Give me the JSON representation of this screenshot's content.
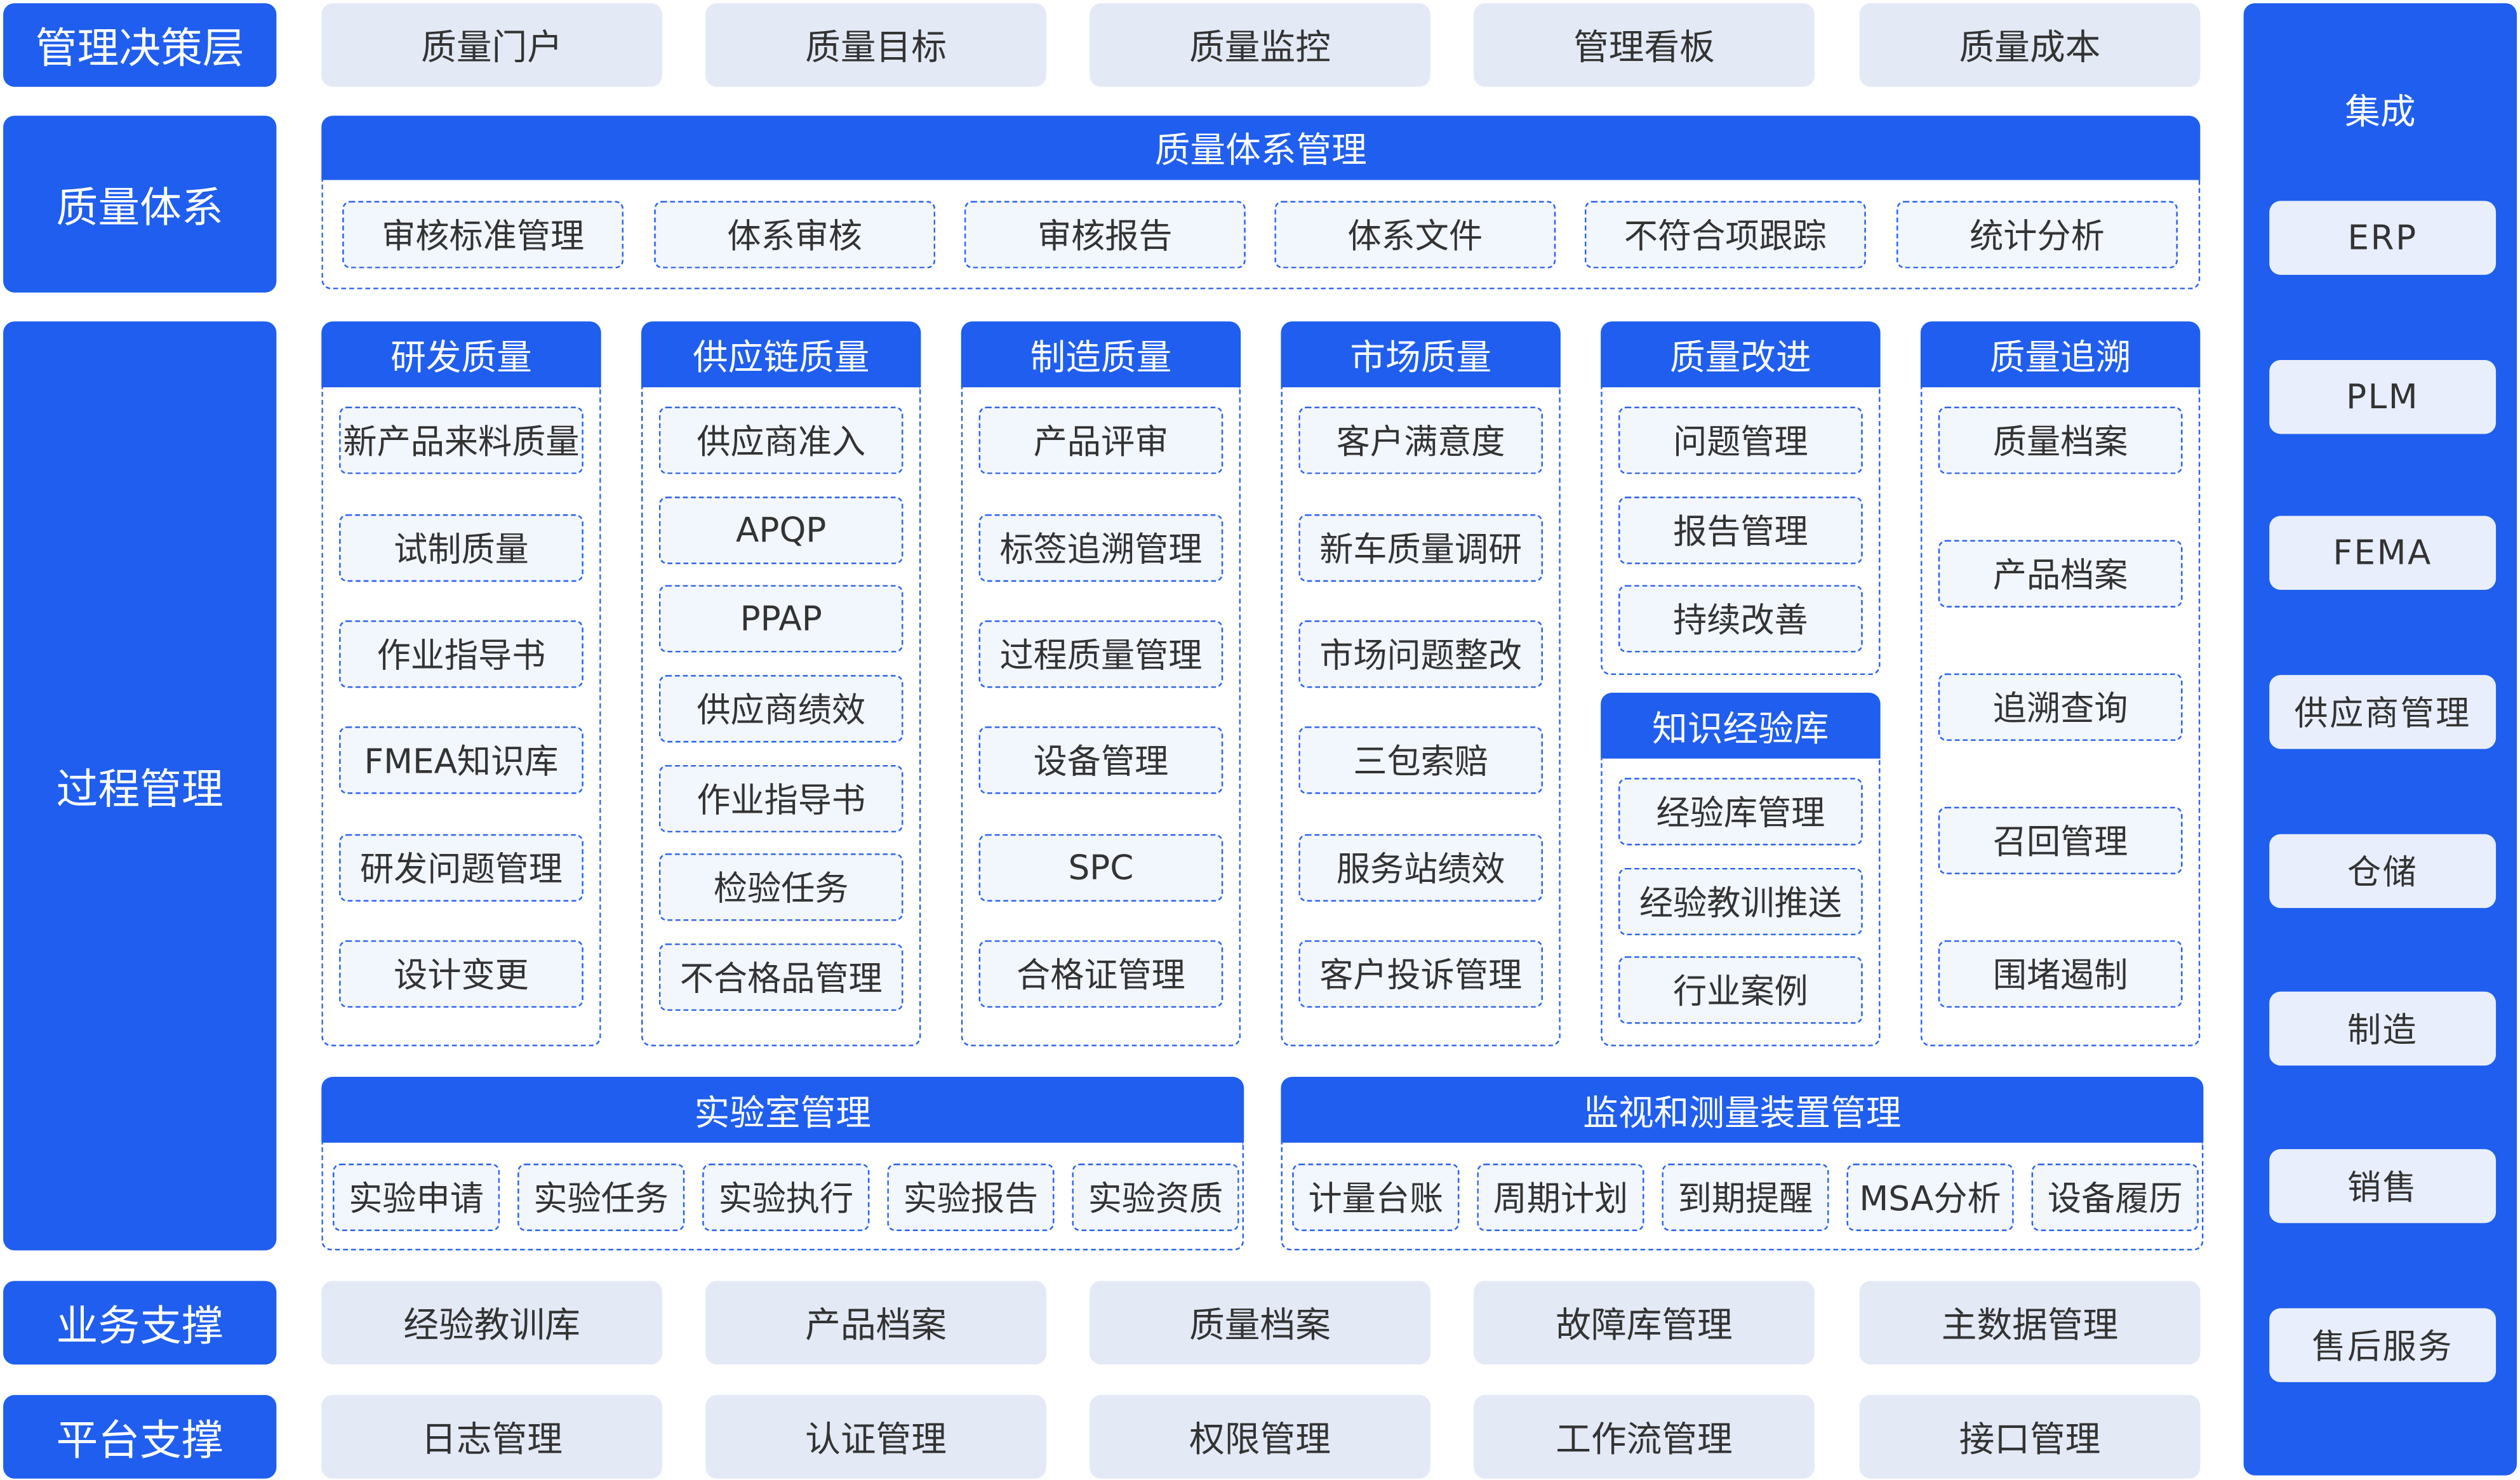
{
  "colors": {
    "primary": "#1f5eee",
    "tile": "#e3e9f5",
    "item": "#f2f6fd",
    "text": "#333333"
  },
  "layers": {
    "decision": "管理决策层",
    "system": "质量体系",
    "process": "过程管理",
    "business": "业务支撑",
    "platform": "平台支撑"
  },
  "decision_items": [
    "质量门户",
    "质量目标",
    "质量监控",
    "管理看板",
    "质量成本"
  ],
  "system_group": {
    "title": "质量体系管理",
    "items": [
      "审核标准管理",
      "体系审核",
      "审核报告",
      "体系文件",
      "不符合项跟踪",
      "统计分析"
    ]
  },
  "process_columns": [
    {
      "title": "研发质量",
      "items": [
        "新产品来料质量",
        "试制质量",
        "作业指导书",
        "FMEA知识库",
        "研发问题管理",
        "设计变更"
      ]
    },
    {
      "title": "供应链质量",
      "items": [
        "供应商准入",
        "APQP",
        "PPAP",
        "供应商绩效",
        "作业指导书",
        "检验任务",
        "不合格品管理"
      ]
    },
    {
      "title": "制造质量",
      "items": [
        "产品评审",
        "标签追溯管理",
        "过程质量管理",
        "设备管理",
        "SPC",
        "合格证管理"
      ]
    },
    {
      "title": "市场质量",
      "items": [
        "客户满意度",
        "新车质量调研",
        "市场问题整改",
        "三包索赔",
        "服务站绩效",
        "客户投诉管理"
      ]
    },
    {
      "title": "质量改进",
      "items": [
        "问题管理",
        "报告管理",
        "持续改善"
      ]
    },
    {
      "title": "知识经验库",
      "items": [
        "经验库管理",
        "经验教训推送",
        "行业案例"
      ]
    },
    {
      "title": "质量追溯",
      "items": [
        "质量档案",
        "产品档案",
        "追溯查询",
        "召回管理",
        "围堵遏制"
      ]
    }
  ],
  "lab_group": {
    "title": "实验室管理",
    "items": [
      "实验申请",
      "实验任务",
      "实验执行",
      "实验报告",
      "实验资质"
    ]
  },
  "measure_group": {
    "title": "监视和测量装置管理",
    "items": [
      "计量台账",
      "周期计划",
      "到期提醒",
      "MSA分析",
      "设备履历"
    ]
  },
  "business_items": [
    "经验教训库",
    "产品档案",
    "质量档案",
    "故障库管理",
    "主数据管理"
  ],
  "platform_items": [
    "日志管理",
    "认证管理",
    "权限管理",
    "工作流管理",
    "接口管理"
  ],
  "integration": {
    "title": "集成",
    "items": [
      "ERP",
      "PLM",
      "FEMA",
      "供应商管理",
      "仓储",
      "制造",
      "销售",
      "售后服务"
    ]
  }
}
